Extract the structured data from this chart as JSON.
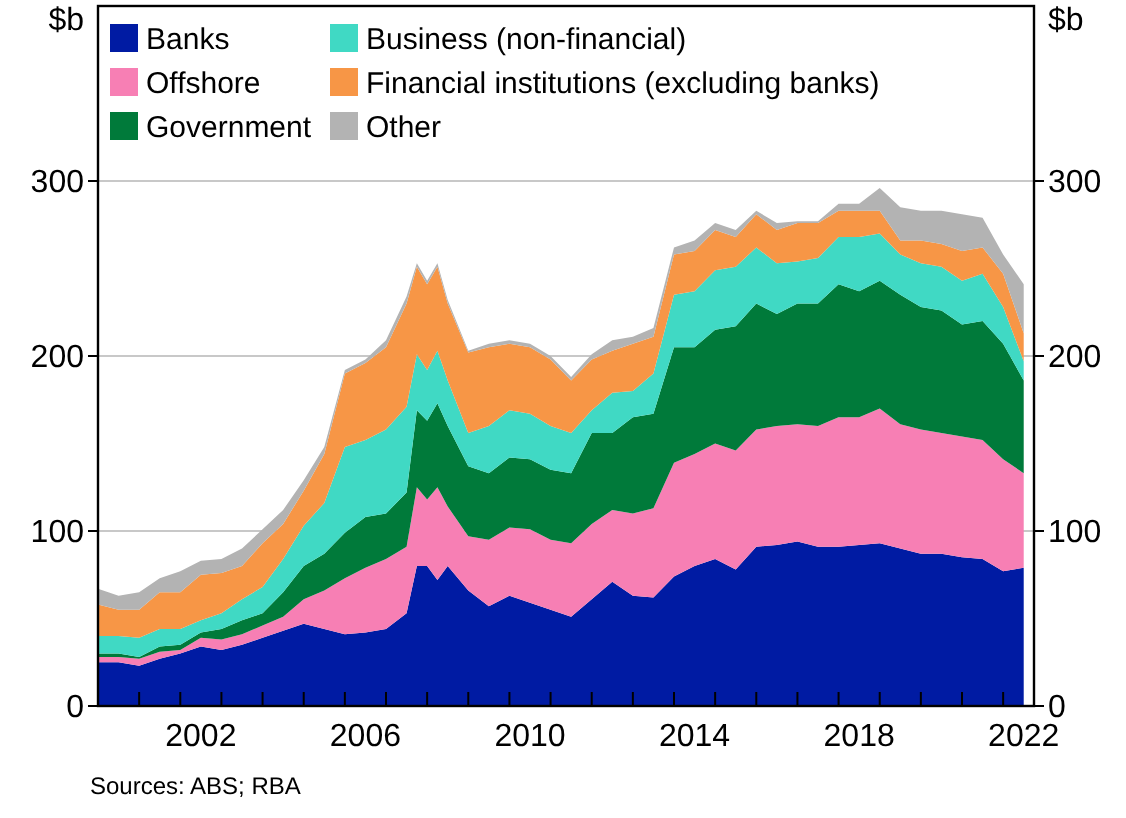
{
  "chart_data": {
    "type": "area",
    "stacked": true,
    "ylabel": "$b",
    "y2label": "$b",
    "annotations": [
      "Sources: ABS; RBA"
    ],
    "x": [
      2000,
      2000.5,
      2001,
      2001.5,
      2002,
      2002.5,
      2003,
      2003.5,
      2004,
      2004.5,
      2005,
      2005.5,
      2006,
      2006.5,
      2007,
      2007.5,
      2007.75,
      2008,
      2008.25,
      2008.5,
      2009,
      2009.5,
      2010,
      2010.5,
      2011,
      2011.5,
      2012,
      2012.5,
      2013,
      2013.5,
      2014,
      2014.5,
      2015,
      2015.5,
      2016,
      2016.5,
      2017,
      2017.5,
      2018,
      2018.5,
      2019,
      2019.5,
      2020,
      2020.5,
      2021,
      2021.5,
      2022,
      2022.5
    ],
    "series": [
      {
        "name": "Banks",
        "color": "#001ba3",
        "values": [
          25,
          25,
          23,
          27,
          30,
          34,
          32,
          35,
          39,
          43,
          47,
          44,
          41,
          42,
          44,
          53,
          80,
          80,
          72,
          80,
          66,
          57,
          63,
          59,
          55,
          51,
          61,
          71,
          63,
          62,
          74,
          80,
          84,
          78,
          91,
          92,
          94,
          91,
          91,
          92,
          93,
          90,
          87,
          87,
          85,
          84,
          77,
          79
        ]
      },
      {
        "name": "Offshore",
        "color": "#f77fb4",
        "values": [
          3,
          3,
          4,
          4,
          2,
          5,
          6,
          6,
          7,
          8,
          14,
          22,
          32,
          37,
          40,
          38,
          45,
          38,
          53,
          34,
          31,
          38,
          39,
          42,
          40,
          42,
          43,
          41,
          47,
          51,
          65,
          64,
          66,
          68,
          67,
          68,
          67,
          69,
          74,
          73,
          77,
          71,
          71,
          69,
          69,
          68,
          64,
          54
        ]
      },
      {
        "name": "Government",
        "color": "#007a3a",
        "values": [
          2,
          2,
          1,
          3,
          3,
          3,
          6,
          8,
          7,
          14,
          19,
          21,
          26,
          29,
          26,
          31,
          44,
          45,
          48,
          46,
          40,
          38,
          40,
          40,
          40,
          40,
          52,
          44,
          55,
          54,
          66,
          61,
          65,
          71,
          72,
          64,
          69,
          70,
          76,
          72,
          73,
          74,
          70,
          70,
          64,
          68,
          66,
          53
        ]
      },
      {
        "name": "Business (non-financial)",
        "color": "#40d9c4",
        "values": [
          10,
          10,
          11,
          10,
          9,
          7,
          9,
          12,
          15,
          19,
          23,
          29,
          49,
          44,
          48,
          49,
          32,
          29,
          30,
          26,
          19,
          27,
          27,
          26,
          25,
          23,
          13,
          23,
          15,
          23,
          30,
          32,
          34,
          34,
          32,
          29,
          24,
          26,
          27,
          31,
          27,
          23,
          25,
          25,
          25,
          27,
          21,
          11
        ]
      },
      {
        "name": "Financial institutions (excluding banks)",
        "color": "#f79646",
        "values": [
          18,
          15,
          16,
          21,
          21,
          26,
          23,
          19,
          25,
          20,
          20,
          28,
          42,
          44,
          47,
          59,
          50,
          49,
          48,
          44,
          46,
          45,
          38,
          38,
          38,
          30,
          29,
          24,
          27,
          21,
          23,
          23,
          23,
          17,
          19,
          19,
          22,
          20,
          15,
          15,
          13,
          8,
          13,
          13,
          17,
          15,
          19,
          16
        ]
      },
      {
        "name": "Other",
        "color": "#b3b3b3",
        "values": [
          9,
          8,
          10,
          8,
          12,
          8,
          8,
          10,
          8,
          8,
          6,
          4,
          2,
          2,
          4,
          4,
          2,
          2,
          2,
          2,
          1,
          2,
          2,
          2,
          2,
          2,
          3,
          6,
          4,
          5,
          4,
          6,
          4,
          4,
          2,
          4,
          1,
          1,
          4,
          4,
          13,
          19,
          17,
          19,
          21,
          17,
          11,
          28
        ]
      }
    ],
    "xlim": [
      2000,
      2022.75
    ],
    "xticks": [
      {
        "value": 2001,
        "label": null
      },
      {
        "value": 2002,
        "label": null
      },
      {
        "value": 2002.5,
        "label": "2002"
      },
      {
        "value": 2003,
        "label": null
      },
      {
        "value": 2004,
        "label": null
      },
      {
        "value": 2005,
        "label": null
      },
      {
        "value": 2006,
        "label": null
      },
      {
        "value": 2006.5,
        "label": "2006"
      },
      {
        "value": 2007,
        "label": null
      },
      {
        "value": 2008,
        "label": null
      },
      {
        "value": 2009,
        "label": null
      },
      {
        "value": 2010,
        "label": null
      },
      {
        "value": 2010.5,
        "label": "2010"
      },
      {
        "value": 2011,
        "label": null
      },
      {
        "value": 2012,
        "label": null
      },
      {
        "value": 2013,
        "label": null
      },
      {
        "value": 2014,
        "label": null
      },
      {
        "value": 2014.5,
        "label": "2014"
      },
      {
        "value": 2015,
        "label": null
      },
      {
        "value": 2016,
        "label": null
      },
      {
        "value": 2017,
        "label": null
      },
      {
        "value": 2018,
        "label": null
      },
      {
        "value": 2018.5,
        "label": "2018"
      },
      {
        "value": 2019,
        "label": null
      },
      {
        "value": 2020,
        "label": null
      },
      {
        "value": 2021,
        "label": null
      },
      {
        "value": 2022,
        "label": null
      },
      {
        "value": 2022.5,
        "label": "2022"
      }
    ],
    "ylim": [
      0,
      400
    ],
    "yticks": [
      0,
      100,
      200,
      300
    ],
    "y2lim": [
      0,
      400
    ],
    "y2ticks": [
      0,
      100,
      200,
      300
    ],
    "grid": "y",
    "legend": "top left"
  }
}
